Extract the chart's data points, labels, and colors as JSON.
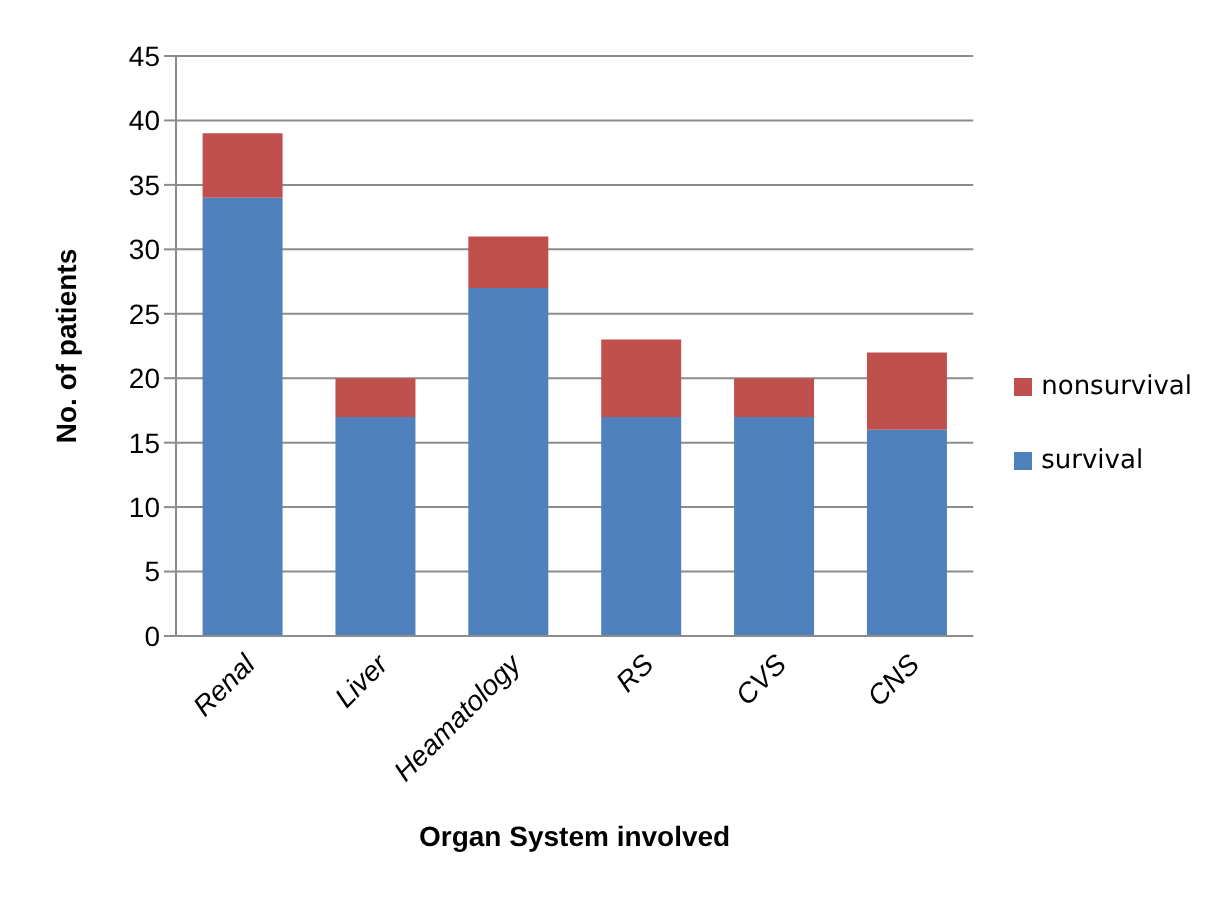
{
  "chart_data": {
    "type": "bar",
    "stacked": true,
    "xlabel": "Organ System involved",
    "ylabel": "No. of patients",
    "categories": [
      "Renal",
      "Liver",
      "Heamatology",
      "RS",
      "CVS",
      "CNS"
    ],
    "series": [
      {
        "name": "survival",
        "color": "#4f81bd",
        "values": [
          34,
          17,
          27,
          17,
          17,
          16
        ]
      },
      {
        "name": "nonsurvival",
        "color": "#c0504d",
        "values": [
          5,
          3,
          4,
          6,
          3,
          6
        ]
      }
    ],
    "ylim": [
      0,
      45
    ],
    "yticks": [
      0,
      5,
      10,
      15,
      20,
      25,
      30,
      35,
      40,
      45
    ],
    "grid": "y",
    "legend": "right"
  }
}
